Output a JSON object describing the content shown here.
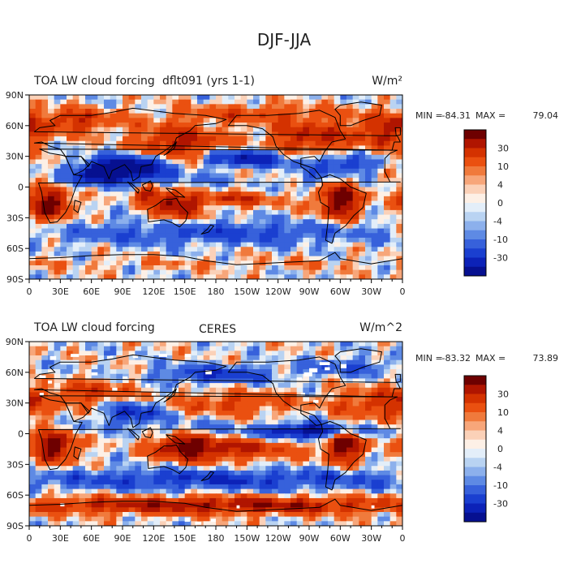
{
  "figure_title": "DJF-JJA",
  "colors": {
    "scale": [
      "#6e0000",
      "#b01500",
      "#d43200",
      "#ea5010",
      "#f07a3c",
      "#f7a67a",
      "#fbd1b8",
      "#fdf0e6",
      "#e3eef9",
      "#b9d3f2",
      "#8cb0ec",
      "#5e8ae4",
      "#3761db",
      "#1a3fd0",
      "#0c22b8",
      "#061090"
    ],
    "land_outline": "#000000",
    "missing": "#ffffff"
  },
  "chart_data": [
    {
      "type": "heatmap",
      "id": "model",
      "title": "TOA LW cloud forcing",
      "case": "dflt091 (yrs 1-1)",
      "units": "W/m²",
      "stats": {
        "min_label": "MIN =",
        "min": "-84.31",
        "max_label": "MAX =",
        "max": "79.04"
      },
      "colorbar_labels": [
        "30",
        "10",
        "4",
        "0",
        "-4",
        "-10",
        "-30"
      ],
      "xticks": [
        "0",
        "30E",
        "60E",
        "90E",
        "120E",
        "150E",
        "180",
        "150W",
        "120W",
        "90W",
        "60W",
        "30W",
        "0"
      ],
      "yticks": [
        "90N",
        "60N",
        "30N",
        "0",
        "30S",
        "60S",
        "90S"
      ],
      "lon_range": [
        0,
        360
      ],
      "lat_range": [
        -90,
        90
      ],
      "blobs": [
        {
          "lon": 20,
          "lat": -15,
          "sx": 14,
          "sy": 12,
          "v": 48
        },
        {
          "lon": 300,
          "lat": -12,
          "sx": 15,
          "sy": 13,
          "v": 52
        },
        {
          "lon": 140,
          "lat": -18,
          "sx": 15,
          "sy": 10,
          "v": 42
        },
        {
          "lon": 115,
          "lat": -5,
          "sx": 10,
          "sy": 6,
          "v": 32
        },
        {
          "lon": 195,
          "lat": -12,
          "sx": 30,
          "sy": 5,
          "v": 28
        },
        {
          "lon": 100,
          "lat": 18,
          "sx": 24,
          "sy": 9,
          "v": -62
        },
        {
          "lon": 65,
          "lat": 15,
          "sx": 14,
          "sy": 7,
          "v": -38
        },
        {
          "lon": 205,
          "lat": 28,
          "sx": 32,
          "sy": 6,
          "v": -40
        },
        {
          "lon": 145,
          "lat": 42,
          "sx": 30,
          "sy": 14,
          "v": 34
        },
        {
          "lon": 270,
          "lat": 48,
          "sx": 28,
          "sy": 12,
          "v": 32
        },
        {
          "lon": 345,
          "lat": 55,
          "sx": 25,
          "sy": 12,
          "v": 28
        },
        {
          "lon": 45,
          "lat": 65,
          "sx": 30,
          "sy": 8,
          "v": 25
        },
        {
          "lon": 220,
          "lat": 72,
          "sx": 55,
          "sy": 6,
          "v": 18
        },
        {
          "lon": 300,
          "lat": 22,
          "sx": 22,
          "sy": 7,
          "v": -32
        },
        {
          "lon": 180,
          "lat": -45,
          "sx": 120,
          "sy": 8,
          "v": -22
        },
        {
          "lon": 180,
          "lat": -75,
          "sx": 150,
          "sy": 4,
          "v": 6
        }
      ]
    },
    {
      "type": "heatmap",
      "id": "obs",
      "title": "TOA LW cloud forcing",
      "case": "CERES",
      "units": "W/m^2",
      "stats": {
        "min_label": "MIN =",
        "min": "-83.32",
        "max_label": "MAX =",
        "max": "73.89"
      },
      "colorbar_labels": [
        "30",
        "10",
        "4",
        "0",
        "-4",
        "-10",
        "-30"
      ],
      "xticks": [
        "0",
        "30E",
        "60E",
        "90E",
        "120E",
        "150E",
        "180",
        "150W",
        "120W",
        "90W",
        "60W",
        "30W",
        "0"
      ],
      "yticks": [
        "90N",
        "60N",
        "30N",
        "0",
        "30S",
        "60S",
        "90S"
      ],
      "lon_range": [
        0,
        360
      ],
      "lat_range": [
        -90,
        90
      ],
      "blobs": [
        {
          "lon": 25,
          "lat": -10,
          "sx": 14,
          "sy": 12,
          "v": 52
        },
        {
          "lon": 305,
          "lat": -10,
          "sx": 14,
          "sy": 12,
          "v": 50
        },
        {
          "lon": 150,
          "lat": -12,
          "sx": 20,
          "sy": 9,
          "v": 40
        },
        {
          "lon": 200,
          "lat": -15,
          "sx": 40,
          "sy": 8,
          "v": 30
        },
        {
          "lon": 100,
          "lat": 20,
          "sx": 18,
          "sy": 8,
          "v": -35
        },
        {
          "lon": 200,
          "lat": 30,
          "sx": 40,
          "sy": 8,
          "v": 22
        },
        {
          "lon": 270,
          "lat": 2,
          "sx": 40,
          "sy": 5,
          "v": -40
        },
        {
          "lon": 340,
          "lat": 30,
          "sx": 30,
          "sy": 10,
          "v": 28
        },
        {
          "lon": 60,
          "lat": 40,
          "sx": 30,
          "sy": 8,
          "v": 24
        },
        {
          "lon": 180,
          "lat": 58,
          "sx": 40,
          "sy": 6,
          "v": -30
        },
        {
          "lon": 180,
          "lat": -45,
          "sx": 150,
          "sy": 7,
          "v": -28
        },
        {
          "lon": 180,
          "lat": -70,
          "sx": 150,
          "sy": 6,
          "v": 38
        },
        {
          "lon": 310,
          "lat": 65,
          "sx": 30,
          "sy": 6,
          "v": -20
        }
      ]
    }
  ]
}
